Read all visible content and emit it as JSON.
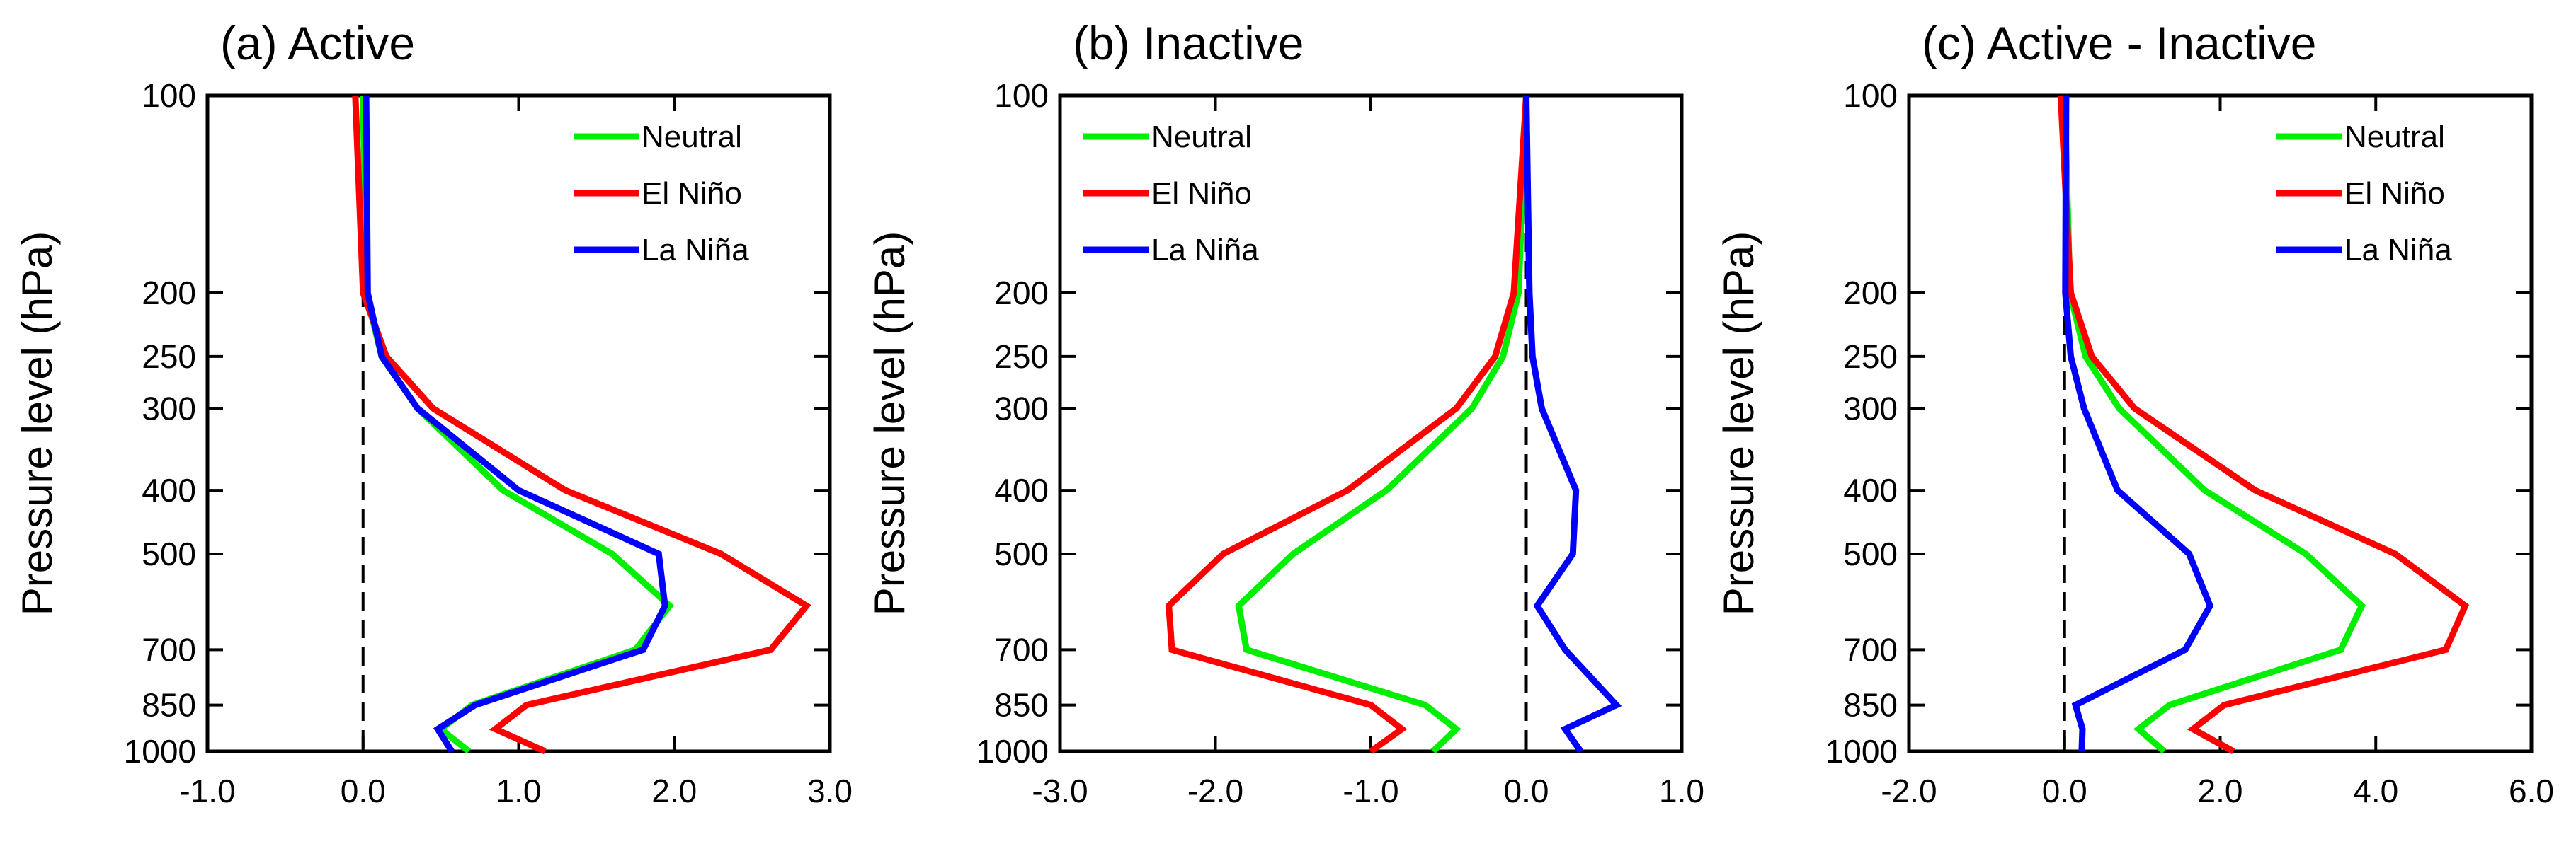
{
  "chart_data": [
    {
      "type": "line",
      "title": "(a) Active",
      "ylabel": "Pressure level (hPa)",
      "xlabel": "",
      "xlim": [
        -1.0,
        3.0
      ],
      "xticks": [
        -1.0,
        0.0,
        1.0,
        2.0,
        3.0
      ],
      "xtick_labels": [
        "-1.0",
        "0.0",
        "1.0",
        "2.0",
        "3.0"
      ],
      "ylim": [
        1000,
        100
      ],
      "yticks": [
        100,
        200,
        250,
        300,
        400,
        500,
        700,
        850,
        1000
      ],
      "ytick_labels": [
        "100",
        "200",
        "250",
        "300",
        "400",
        "500",
        "700",
        "850",
        "1000"
      ],
      "zero_line": 0.0,
      "legend_position": "top-right",
      "levels": [
        100,
        200,
        250,
        300,
        400,
        500,
        600,
        700,
        850,
        925,
        1000
      ],
      "series": [
        {
          "name": "Neutral",
          "color": "#00ee00",
          "values": [
            0.0,
            0.02,
            0.12,
            0.35,
            0.9,
            1.6,
            1.97,
            1.75,
            0.7,
            0.5,
            0.68
          ]
        },
        {
          "name": "El Niño",
          "color": "#ff0000",
          "values": [
            -0.05,
            0.0,
            0.15,
            0.45,
            1.3,
            2.3,
            2.85,
            2.62,
            1.05,
            0.85,
            1.17
          ]
        },
        {
          "name": "La Niña",
          "color": "#0000ff",
          "values": [
            0.02,
            0.03,
            0.12,
            0.35,
            1.0,
            1.9,
            1.94,
            1.8,
            0.72,
            0.48,
            0.57
          ]
        }
      ]
    },
    {
      "type": "line",
      "title": "(b) Inactive",
      "ylabel": "Pressure level (hPa)",
      "xlabel": "",
      "xlim": [
        -3.0,
        1.0
      ],
      "xticks": [
        -3.0,
        -2.0,
        -1.0,
        0.0,
        1.0
      ],
      "xtick_labels": [
        "-3.0",
        "-2.0",
        "-1.0",
        "0.0",
        "1.0"
      ],
      "ylim": [
        1000,
        100
      ],
      "yticks": [
        100,
        200,
        250,
        300,
        400,
        500,
        700,
        850,
        1000
      ],
      "ytick_labels": [
        "100",
        "200",
        "250",
        "300",
        "400",
        "500",
        "700",
        "850",
        "1000"
      ],
      "zero_line": 0.0,
      "legend_position": "top-left",
      "levels": [
        100,
        200,
        250,
        300,
        400,
        500,
        600,
        700,
        850,
        925,
        1000
      ],
      "series": [
        {
          "name": "Neutral",
          "color": "#00ee00",
          "values": [
            0.0,
            -0.05,
            -0.15,
            -0.35,
            -0.9,
            -1.5,
            -1.85,
            -1.8,
            -0.65,
            -0.45,
            -0.6
          ]
        },
        {
          "name": "El Niño",
          "color": "#ff0000",
          "values": [
            0.0,
            -0.08,
            -0.2,
            -0.45,
            -1.15,
            -1.95,
            -2.3,
            -2.28,
            -1.0,
            -0.8,
            -1.0
          ]
        },
        {
          "name": "La Niña",
          "color": "#0000ff",
          "values": [
            0.0,
            0.02,
            0.04,
            0.1,
            0.32,
            0.3,
            0.07,
            0.25,
            0.58,
            0.25,
            0.35
          ]
        }
      ]
    },
    {
      "type": "line",
      "title": "(c) Active - Inactive",
      "ylabel": "Pressure level (hPa)",
      "xlabel": "",
      "xlim": [
        -2.0,
        6.0
      ],
      "xticks": [
        -2.0,
        0.0,
        2.0,
        4.0,
        6.0
      ],
      "xtick_labels": [
        "-2.0",
        "0.0",
        "2.0",
        "4.0",
        "6.0"
      ],
      "ylim": [
        1000,
        100
      ],
      "yticks": [
        100,
        200,
        250,
        300,
        400,
        500,
        700,
        850,
        1000
      ],
      "ytick_labels": [
        "100",
        "200",
        "250",
        "300",
        "400",
        "500",
        "700",
        "850",
        "1000"
      ],
      "zero_line": 0.0,
      "legend_position": "top-right",
      "levels": [
        100,
        200,
        250,
        300,
        400,
        500,
        600,
        700,
        850,
        925,
        1000
      ],
      "series": [
        {
          "name": "Neutral",
          "color": "#00ee00",
          "values": [
            0.0,
            0.07,
            0.27,
            0.7,
            1.8,
            3.1,
            3.82,
            3.55,
            1.35,
            0.95,
            1.28
          ]
        },
        {
          "name": "El Niño",
          "color": "#ff0000",
          "values": [
            -0.05,
            0.08,
            0.35,
            0.9,
            2.45,
            4.25,
            5.15,
            4.9,
            2.05,
            1.65,
            2.17
          ]
        },
        {
          "name": "La Niña",
          "color": "#0000ff",
          "values": [
            0.02,
            0.01,
            0.08,
            0.25,
            0.68,
            1.6,
            1.87,
            1.55,
            0.14,
            0.23,
            0.22
          ]
        }
      ]
    }
  ]
}
